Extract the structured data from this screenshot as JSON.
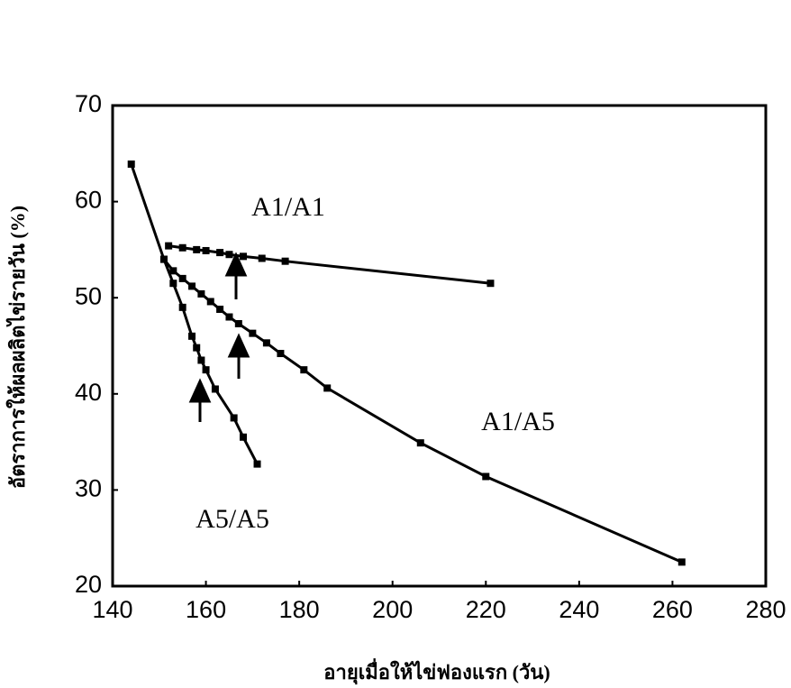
{
  "chart_data": {
    "type": "line",
    "x_label": "อายุเมื่อให้ไข่ฟองแรก (วัน)",
    "y_label": "อัตราการให้ผลผลิตไข่รายวัน (%)",
    "xlim": [
      140,
      280
    ],
    "xticks": [
      140,
      160,
      180,
      200,
      220,
      240,
      260,
      280
    ],
    "ylim": [
      20,
      70
    ],
    "yticks": [
      20,
      30,
      40,
      50,
      60,
      70
    ],
    "grid": false,
    "series": [
      {
        "name": "A1/A1",
        "color": "#000000",
        "x": [
          152,
          155,
          158,
          160,
          163,
          165,
          168,
          172,
          177,
          221
        ],
        "values": [
          55.4,
          55.2,
          55.0,
          54.9,
          54.7,
          54.5,
          54.3,
          54.1,
          53.8,
          51.5
        ]
      },
      {
        "name": "A1/A5",
        "color": "#000000",
        "x": [
          151,
          153,
          155,
          157,
          159,
          161,
          163,
          165,
          167,
          170,
          173,
          176,
          181,
          186,
          206,
          220,
          262
        ],
        "values": [
          54.0,
          52.8,
          52.0,
          51.2,
          50.4,
          49.6,
          48.8,
          48.0,
          47.3,
          46.3,
          45.3,
          44.2,
          42.5,
          40.6,
          34.9,
          31.4,
          22.5
        ]
      },
      {
        "name": "A5/A5",
        "color": "#000000",
        "x": [
          144,
          151,
          153,
          155,
          157,
          158,
          159,
          160,
          162,
          166,
          168,
          171
        ],
        "values": [
          63.9,
          54.0,
          51.5,
          49.0,
          46.0,
          44.8,
          43.5,
          42.5,
          40.5,
          37.5,
          35.5,
          32.7
        ]
      }
    ]
  }
}
